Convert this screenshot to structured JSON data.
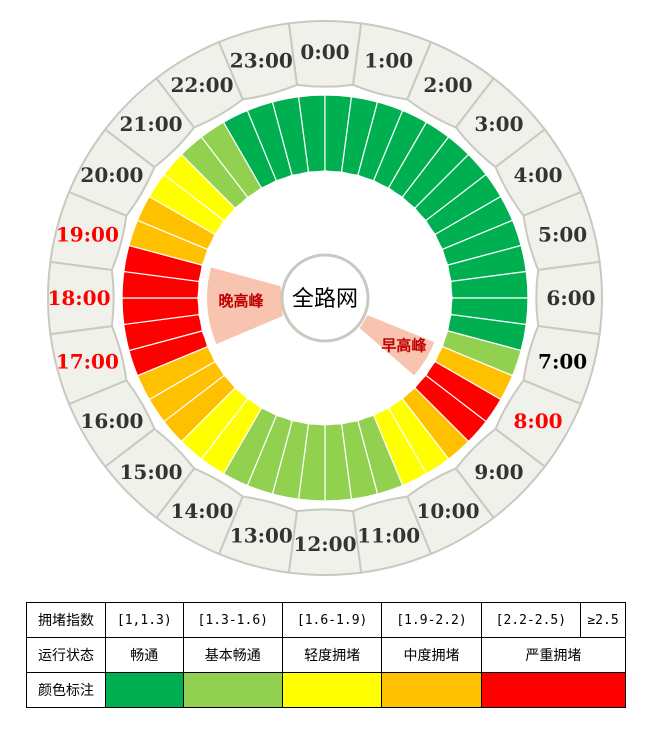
{
  "chart_data": {
    "type": "radial-heatmap",
    "center_label": "全路网",
    "peak_labels": {
      "evening": "晚高峰",
      "morning": "早高峰"
    },
    "hour_labels": [
      "0:00",
      "1:00",
      "2:00",
      "3:00",
      "4:00",
      "5:00",
      "6:00",
      "7:00",
      "8:00",
      "9:00",
      "10:00",
      "11:00",
      "12:00",
      "13:00",
      "14:00",
      "15:00",
      "16:00",
      "17:00",
      "18:00",
      "19:00",
      "20:00",
      "21:00",
      "22:00",
      "23:00"
    ],
    "highlight_hours": {
      "red": [
        "8:00",
        "17:00",
        "18:00",
        "19:00"
      ],
      "black": [
        "7:00"
      ]
    },
    "slots_per_hour": 2,
    "levels": [
      "畅通",
      "畅通",
      "畅通",
      "畅通",
      "畅通",
      "畅通",
      "畅通",
      "畅通",
      "畅通",
      "畅通",
      "畅通",
      "畅通",
      "畅通",
      "畅通",
      "畅通",
      "基本畅通",
      "中度拥堵",
      "严重拥堵",
      "严重拥堵",
      "中度拥堵",
      "轻度拥堵",
      "轻度拥堵",
      "基本畅通",
      "基本畅通",
      "基本畅通",
      "基本畅通",
      "基本畅通",
      "基本畅通",
      "基本畅通",
      "轻度拥堵",
      "轻度拥堵",
      "中度拥堵",
      "中度拥堵",
      "中度拥堵",
      "严重拥堵",
      "严重拥堵",
      "严重拥堵",
      "严重拥堵",
      "严重拥堵",
      "中度拥堵",
      "中度拥堵",
      "轻度拥堵",
      "轻度拥堵",
      "基本畅通",
      "基本畅通",
      "畅通",
      "畅通",
      "畅通"
    ],
    "level_colors": {
      "畅通": "#00b050",
      "基本畅通": "#92d050",
      "轻度拥堵": "#ffff00",
      "中度拥堵": "#ffc000",
      "严重拥堵": "#ff0000"
    }
  },
  "legend": {
    "row_headers": [
      "拥堵指数",
      "运行状态",
      "颜色标注"
    ],
    "ranges": [
      "[1,1.3)",
      "[1.3-1.6)",
      "[1.6-1.9)",
      "[1.9-2.2)",
      "[2.2-2.5)",
      "≥2.5"
    ],
    "states": [
      "畅通",
      "基本畅通",
      "轻度拥堵",
      "中度拥堵",
      "严重拥堵"
    ],
    "colors": [
      "#00b050",
      "#92d050",
      "#ffff00",
      "#ffc000",
      "#ff0000"
    ]
  },
  "style": {
    "ring_fill": "#f0f1ea",
    "ring_stroke": "#c8c9c0",
    "peak_fill": "#f8c4b0",
    "red_label": "#ff0000",
    "black_label": "#000000",
    "normal_label": "#333333"
  }
}
